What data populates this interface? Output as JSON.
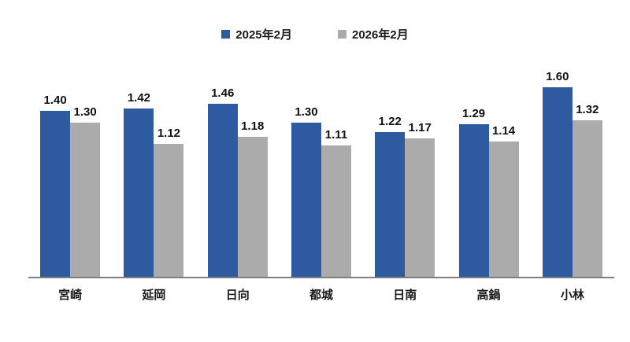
{
  "chart_data": {
    "type": "bar",
    "title": "",
    "categories": [
      "宮崎",
      "延岡",
      "日向",
      "都城",
      "日南",
      "高鍋",
      "小林"
    ],
    "series": [
      {
        "name": "2025年2月",
        "color": "#2E5B9F",
        "values": [
          1.4,
          1.42,
          1.46,
          1.3,
          1.22,
          1.29,
          1.6
        ]
      },
      {
        "name": "2026年2月",
        "color": "#ABABAB",
        "values": [
          1.3,
          1.12,
          1.18,
          1.11,
          1.17,
          1.14,
          1.32
        ]
      }
    ],
    "value_label_decimals": 2,
    "legend_position": "top",
    "grid": false,
    "y_axis_visible": false,
    "axis_line_color": "#7F7F7F",
    "background": "#FFFFFF",
    "ylim": [
      0,
      1.9
    ]
  }
}
